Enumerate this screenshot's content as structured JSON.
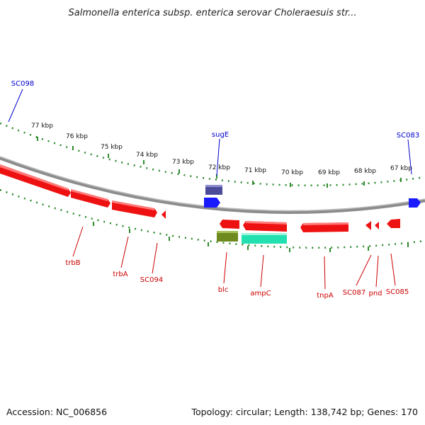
{
  "title": "Salmonella enterica subsp. enterica serovar Choleraesuis str...",
  "footer": {
    "accession": "Accession: NC_006856",
    "summary": "Topology: circular; Length: 138,742 bp; Genes: 170"
  },
  "colors": {
    "backbone": "#8c8c8c",
    "ticks": "#2e8b2e",
    "forward_label": "#0000cc",
    "reverse_label": "#cc0000",
    "reverse_gene": "#ee1111",
    "forward_gene": "#1a1aff",
    "sugE_gene": "#4b4b99",
    "blc_gene": "#6e8a1e",
    "ampC_gene": "#22e0b0"
  },
  "tick_labels": [
    "77 kbp",
    "76 kbp",
    "75 kbp",
    "74 kbp",
    "73 kbp",
    "72 kbp",
    "71 kbp",
    "70 kbp",
    "69 kbp",
    "68 kbp",
    "67 kbp"
  ],
  "forward_labels": [
    "SC098",
    "sugE",
    "SC083"
  ],
  "reverse_labels": [
    "trbB",
    "trbA",
    "SC094",
    "blc",
    "ampC",
    "tnpA",
    "SC087",
    "pnd",
    "SC085"
  ]
}
